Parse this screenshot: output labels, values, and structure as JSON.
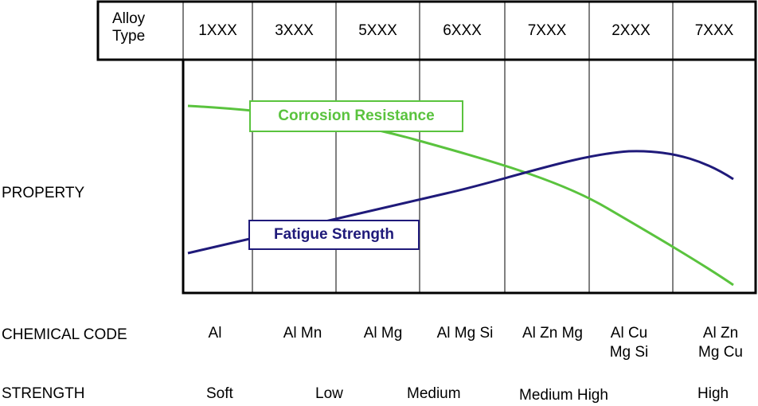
{
  "header": {
    "alloy_type_label_line1": "Alloy",
    "alloy_type_label_line2": "Type",
    "columns": [
      "1XXX",
      "3XXX",
      "5XXX",
      "6XXX",
      "7XXX",
      "2XXX",
      "7XXX"
    ]
  },
  "labels": {
    "property": "PROPERTY",
    "chemical_code": "CHEMICAL CODE",
    "strength": "STRENGTH"
  },
  "curves": {
    "corrosion": {
      "label": "Corrosion Resistance",
      "color": "#5ac33e"
    },
    "fatigue": {
      "label": "Fatigue Strength",
      "color": "#1f1a7a"
    }
  },
  "chemical_codes": [
    [
      "Al"
    ],
    [
      "Al Mn"
    ],
    [
      "Al Mg"
    ],
    [
      "Al Mg Si"
    ],
    [
      "Al Zn Mg"
    ],
    [
      "Al Cu",
      "Mg Si"
    ],
    [
      "Al Zn",
      "Mg Cu"
    ]
  ],
  "strength_levels": [
    "Soft",
    "Low",
    "Medium",
    "Medium High",
    "High"
  ]
}
